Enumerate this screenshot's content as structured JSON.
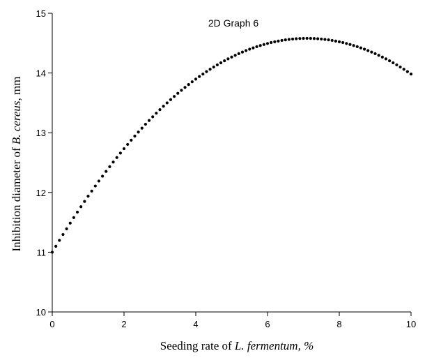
{
  "chart_data": {
    "type": "scatter",
    "title": "2D Graph 6",
    "xlabel": {
      "prefix": "Seeding rate of ",
      "italic": "L. fermentum, %"
    },
    "ylabel": {
      "prefix": "Inhibition diameter of ",
      "italic": "B. cereus",
      "suffix": ", mm"
    },
    "xlim": [
      0,
      10
    ],
    "ylim": [
      10,
      15
    ],
    "xticks": [
      0,
      2,
      4,
      6,
      8,
      10
    ],
    "yticks": [
      10,
      11,
      12,
      13,
      14,
      15
    ],
    "grid": false,
    "legend": "none",
    "curve": {
      "model": "quadratic",
      "x_start": 0,
      "x_end": 10,
      "n_points": 101,
      "y_at_0": 11.0,
      "x_peak": 7.1,
      "y_peak": 14.58
    },
    "marker_color": "#000000"
  }
}
